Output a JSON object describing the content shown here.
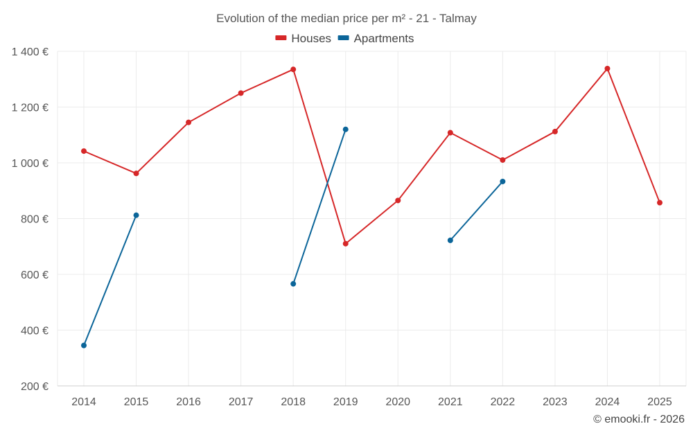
{
  "chart_data": {
    "type": "line",
    "title": "Evolution of the median price per m² - 21 - Talmay",
    "categories": [
      "2014",
      "2015",
      "2016",
      "2017",
      "2018",
      "2019",
      "2020",
      "2021",
      "2022",
      "2023",
      "2024",
      "2025"
    ],
    "series": [
      {
        "name": "Houses",
        "color": "#d62728",
        "values": [
          1042,
          962,
          1145,
          1250,
          1335,
          710,
          865,
          1108,
          1010,
          1112,
          1338,
          857
        ]
      },
      {
        "name": "Apartments",
        "color": "#0b6599",
        "values": [
          345,
          812,
          null,
          null,
          566,
          1120,
          null,
          722,
          933,
          null,
          null,
          null
        ]
      }
    ],
    "ylim": [
      200,
      1400
    ],
    "yticks": [
      200,
      400,
      600,
      800,
      1000,
      1200,
      1400
    ],
    "ytick_labels": [
      "200 €",
      "400 €",
      "600 €",
      "800 €",
      "1 000 €",
      "1 200 €",
      "1 400 €"
    ],
    "xlabel": "",
    "ylabel": "",
    "grid": true,
    "legend_position": "top-center"
  },
  "credit": "© emooki.fr - 2026"
}
